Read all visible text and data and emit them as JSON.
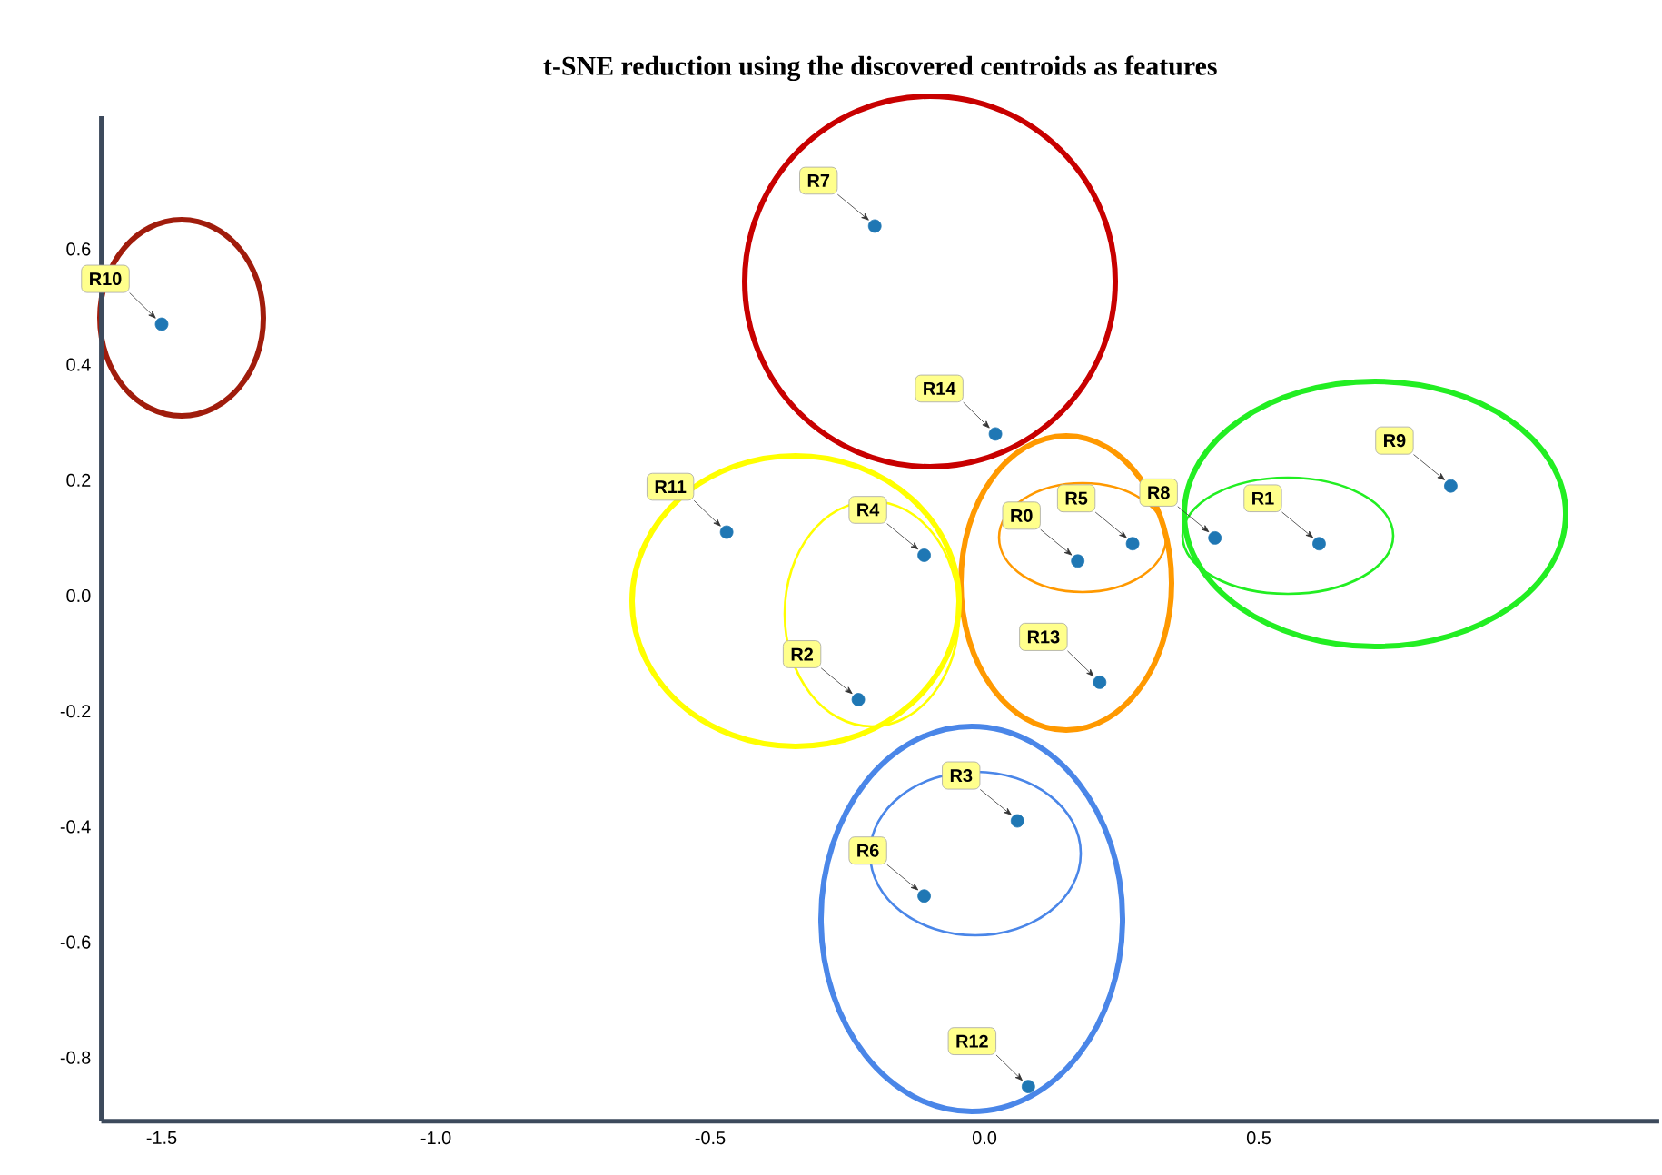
{
  "chart_data": {
    "type": "scatter",
    "title": "t-SNE reduction using the discovered centroids as features",
    "x": [
      0.17,
      0.61,
      -0.23,
      0.06,
      -0.11,
      0.27,
      -0.11,
      -0.2,
      0.42,
      0.85,
      -1.5,
      -0.47,
      0.08,
      0.21,
      0.02
    ],
    "values": [
      0.06,
      0.09,
      -0.18,
      -0.39,
      0.07,
      0.09,
      -0.52,
      0.64,
      0.1,
      0.19,
      0.47,
      0.11,
      -0.85,
      -0.15,
      0.28
    ],
    "color": "#1f77b4",
    "marker": "circle",
    "grid": false,
    "xlim": [
      -1.61,
      1.23
    ],
    "ylim": [
      -0.91,
      0.83
    ],
    "xticks": [
      -1.5,
      {
        "value": -1.0,
        "label": "-1.0"
      },
      -0.5,
      {
        "value": 0.0,
        "label": "0.0"
      },
      0.5
    ],
    "yticks": [
      -0.8,
      -0.6,
      -0.4,
      -0.2,
      {
        "value": 0.0,
        "label": "0.0"
      },
      0.2,
      0.4,
      0.6
    ],
    "annotations": [
      {
        "text": "R0",
        "x": 0.17,
        "y": 0.06
      },
      {
        "text": "R1",
        "x": 0.61,
        "y": 0.09
      },
      {
        "text": "R2",
        "x": -0.23,
        "y": -0.18
      },
      {
        "text": "R3",
        "x": 0.06,
        "y": -0.39
      },
      {
        "text": "R4",
        "x": -0.11,
        "y": 0.07
      },
      {
        "text": "R5",
        "x": 0.27,
        "y": 0.09
      },
      {
        "text": "R6",
        "x": -0.11,
        "y": -0.52
      },
      {
        "text": "R7",
        "x": -0.2,
        "y": 0.64
      },
      {
        "text": "R8",
        "x": 0.42,
        "y": 0.1
      },
      {
        "text": "R9",
        "x": 0.85,
        "y": 0.19
      },
      {
        "text": "R10",
        "x": -1.5,
        "y": 0.47
      },
      {
        "text": "R11",
        "x": -0.47,
        "y": 0.11
      },
      {
        "text": "R12",
        "x": 0.08,
        "y": -0.85
      },
      {
        "text": "R13",
        "x": 0.21,
        "y": -0.15
      },
      {
        "text": "R14",
        "x": 0.02,
        "y": 0.28
      }
    ]
  }
}
